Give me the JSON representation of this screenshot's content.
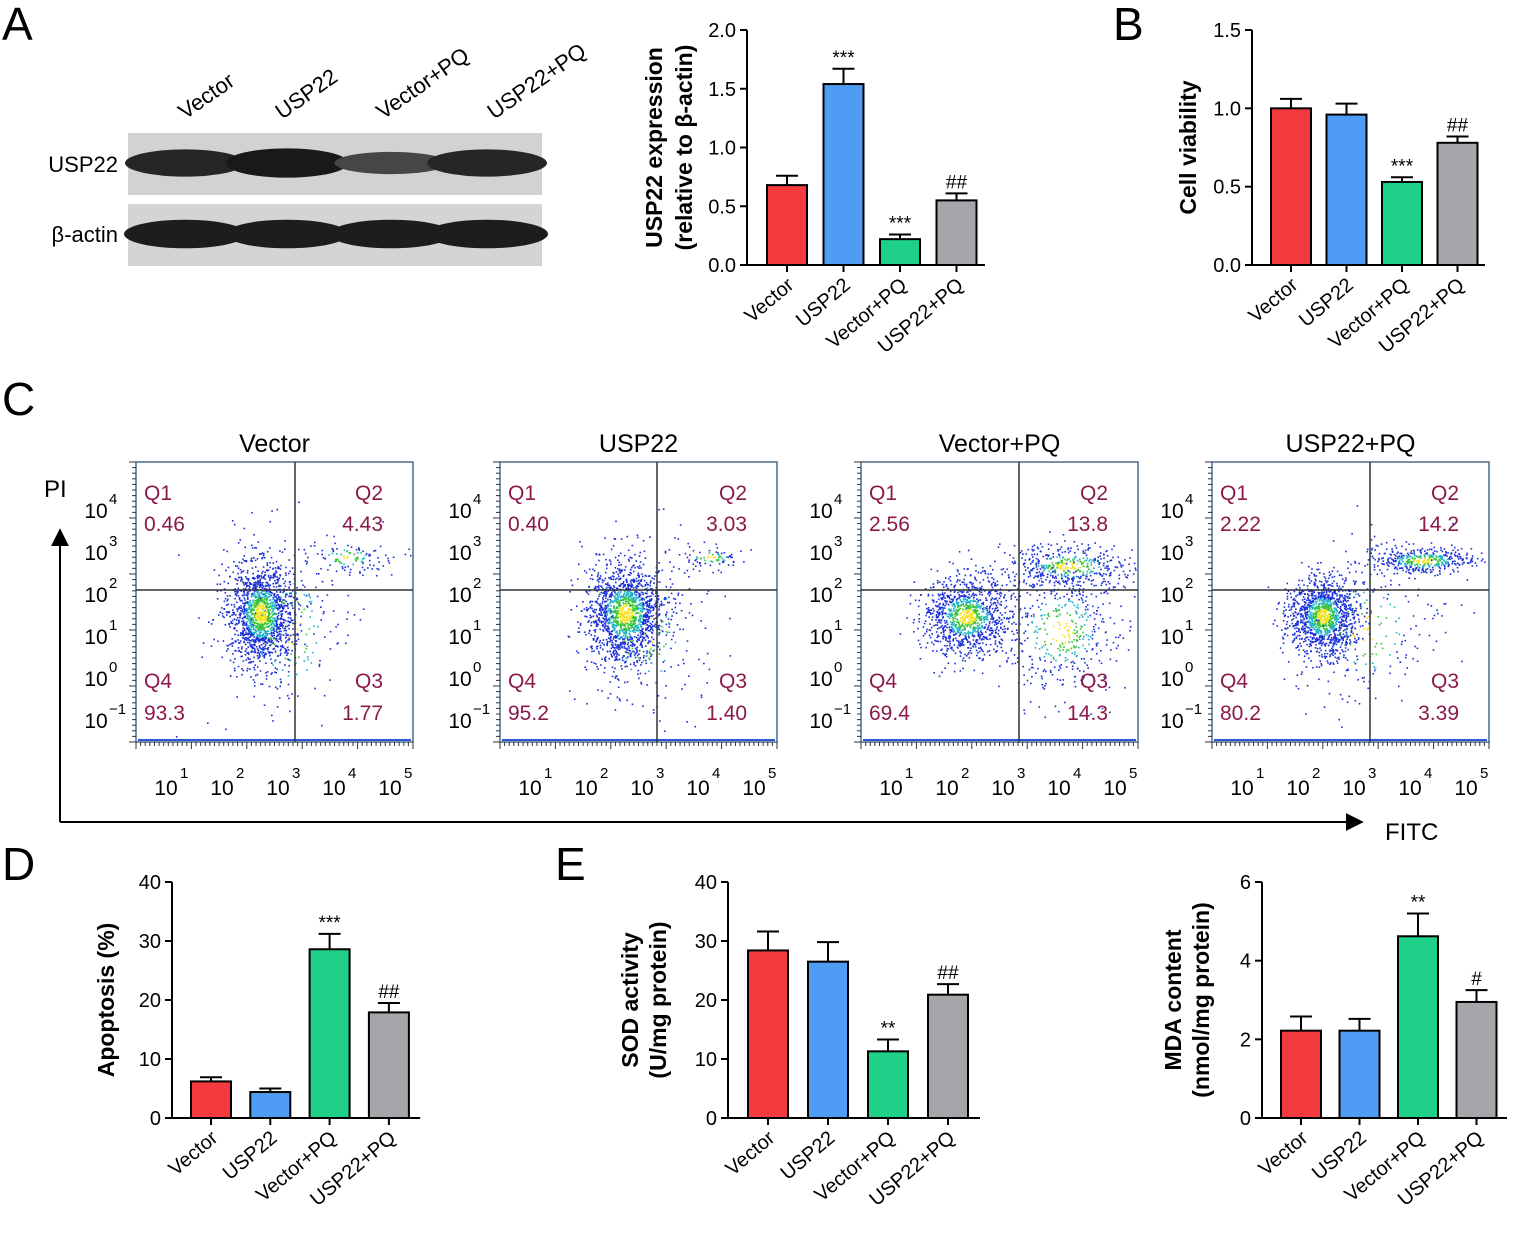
{
  "colors": {
    "vector": "#f23a3f",
    "usp22": "#4e9cf3",
    "vector_pq": "#1fd088",
    "usp22_pq": "#a5a5aa",
    "quadrant_text": "#8b1a4a",
    "plot_frame": "#4a6a8a"
  },
  "panels": {
    "a": "A",
    "b": "B",
    "c": "C",
    "d": "D",
    "e": "E"
  },
  "western_blot": {
    "lanes": [
      "Vector",
      "USP22",
      "Vector+PQ",
      "USP22+PQ"
    ],
    "rows": [
      {
        "label": "USP22",
        "intensity": [
          0.8,
          0.95,
          0.45,
          0.8
        ]
      },
      {
        "label": "β-actin",
        "intensity": [
          0.9,
          0.9,
          0.9,
          0.9
        ]
      }
    ]
  },
  "chart_data": [
    {
      "id": "usp22",
      "type": "bar",
      "categories": [
        "Vector",
        "USP22",
        "Vector+PQ",
        "USP22+PQ"
      ],
      "values": [
        0.68,
        1.54,
        0.22,
        0.55
      ],
      "errors": [
        0.08,
        0.13,
        0.04,
        0.06
      ],
      "significance": [
        "",
        "***",
        "***",
        "##"
      ],
      "ylabel_line1": "USP22 expression",
      "ylabel_line2": "(relative to β-actin)",
      "ylim": [
        0,
        2
      ],
      "yticks": [
        "0.0",
        "0.5",
        "1.0",
        "1.5",
        "2.0"
      ]
    },
    {
      "id": "viability",
      "type": "bar",
      "categories": [
        "Vector",
        "USP22",
        "Vector+PQ",
        "USP22+PQ"
      ],
      "values": [
        1.0,
        0.96,
        0.53,
        0.78
      ],
      "errors": [
        0.06,
        0.07,
        0.03,
        0.04
      ],
      "significance": [
        "",
        "",
        "***",
        "##"
      ],
      "ylabel_line1": "Cell viability",
      "ylabel_line2": "",
      "ylim": [
        0,
        1.5
      ],
      "yticks": [
        "0.0",
        "0.5",
        "1.0",
        "1.5"
      ]
    },
    {
      "id": "apoptosis",
      "type": "bar",
      "categories": [
        "Vector",
        "USP22",
        "Vector+PQ",
        "USP22+PQ"
      ],
      "values": [
        6.2,
        4.4,
        28.6,
        17.9
      ],
      "errors": [
        0.7,
        0.6,
        2.6,
        1.6
      ],
      "significance": [
        "",
        "",
        "***",
        "##"
      ],
      "ylabel_line1": "Apoptosis (%)",
      "ylabel_line2": "",
      "ylim": [
        0,
        40
      ],
      "yticks": [
        "0",
        "10",
        "20",
        "30",
        "40"
      ]
    },
    {
      "id": "sod",
      "type": "bar",
      "categories": [
        "Vector",
        "USP22",
        "Vector+PQ",
        "USP22+PQ"
      ],
      "values": [
        28.4,
        26.5,
        11.3,
        20.9
      ],
      "errors": [
        3.2,
        3.3,
        2.0,
        1.8
      ],
      "significance": [
        "",
        "",
        "**",
        "##"
      ],
      "ylabel_line1": "SOD activity",
      "ylabel_line2": "(U/mg protein)",
      "ylim": [
        0,
        40
      ],
      "yticks": [
        "0",
        "10",
        "20",
        "30",
        "40"
      ]
    },
    {
      "id": "mda",
      "type": "bar",
      "categories": [
        "Vector",
        "USP22",
        "Vector+PQ",
        "USP22+PQ"
      ],
      "values": [
        2.22,
        2.22,
        4.62,
        2.95
      ],
      "errors": [
        0.36,
        0.3,
        0.58,
        0.3
      ],
      "significance": [
        "",
        "",
        "**",
        "#"
      ],
      "ylabel_line1": "MDA content",
      "ylabel_line2": "(nmol/mg protein)",
      "ylim": [
        0,
        6
      ],
      "yticks": [
        "0",
        "2",
        "4",
        "6"
      ]
    }
  ],
  "flow_cytometry": {
    "x_axis_label": "FITC",
    "y_axis_label": "PI",
    "x_tick_exponents": [
      "1",
      "2",
      "3",
      "4",
      "5"
    ],
    "y_tick_exponents": [
      "4",
      "3",
      "2",
      "1",
      "0",
      "−1"
    ],
    "tick_base": "10",
    "plots": [
      {
        "title": "Vector",
        "q1_label": "Q1",
        "q1": "0.46",
        "q2_label": "Q2",
        "q2": "4.43",
        "q3_label": "Q3",
        "q3": "1.77",
        "q4_label": "Q4",
        "q4": "93.3"
      },
      {
        "title": "USP22",
        "q1_label": "Q1",
        "q1": "0.40",
        "q2_label": "Q2",
        "q2": "3.03",
        "q3_label": "Q3",
        "q3": "1.40",
        "q4_label": "Q4",
        "q4": "95.2"
      },
      {
        "title": "Vector+PQ",
        "q1_label": "Q1",
        "q1": "2.56",
        "q2_label": "Q2",
        "q2": "13.8",
        "q3_label": "Q3",
        "q3": "14.3",
        "q4_label": "Q4",
        "q4": "69.4"
      },
      {
        "title": "USP22+PQ",
        "q1_label": "Q1",
        "q1": "2.22",
        "q2_label": "Q2",
        "q2": "14.2",
        "q3_label": "Q3",
        "q3": "3.39",
        "q4_label": "Q4",
        "q4": "80.2"
      }
    ]
  }
}
